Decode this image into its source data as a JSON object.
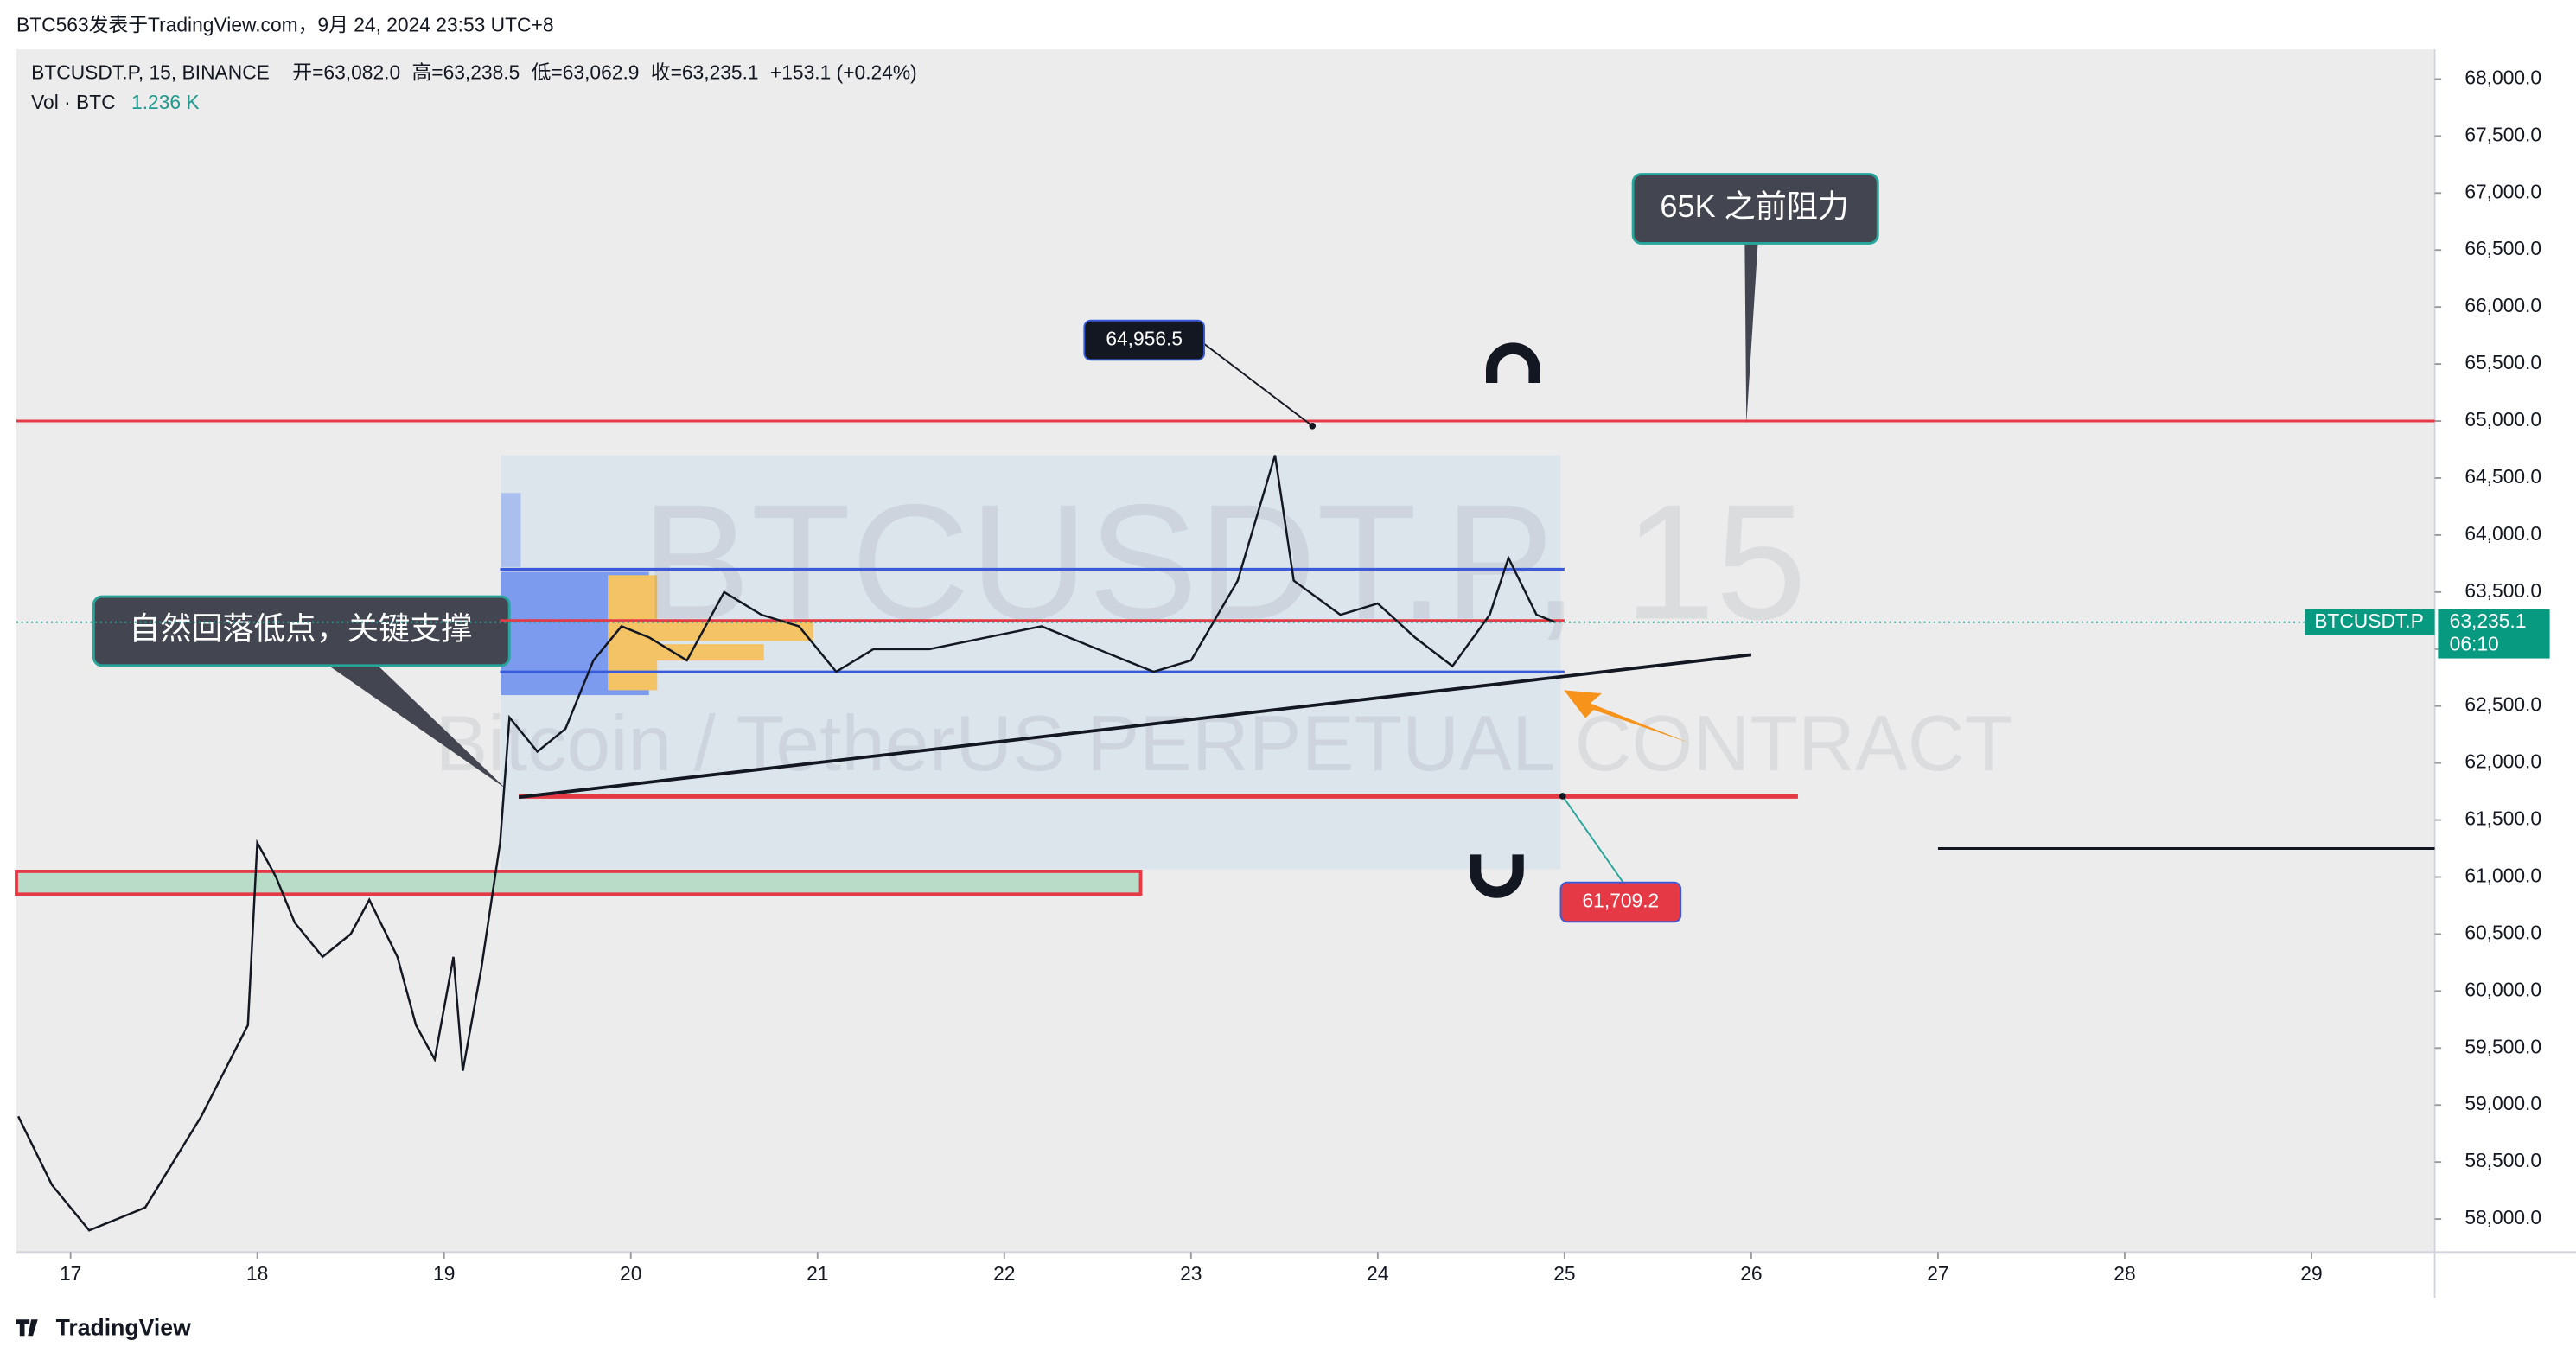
{
  "chart_data": {
    "type": "line",
    "header": "BTC563发表于TradingView.com，9月 24, 2024 23:53 UTC+8",
    "title": "BTCUSDT.P, 15, BINANCE",
    "ohlc": [
      "开=63,082.0",
      "高=63,238.5",
      "低=63,062.9",
      "收=63,235.1",
      "+153.1 (+0.24%)"
    ],
    "volume_label": "Vol · BTC",
    "volume_value": "1.236 K",
    "watermark": "BTCUSDT.P, 15",
    "watermark_sub": "Bitcoin / TetherUS PERPETUAL CONTRACT",
    "footer": "TradingView",
    "xlim": [
      16.71,
      29.66
    ],
    "ylim": [
      57710,
      68260
    ],
    "xticks": [
      17,
      18,
      19,
      20,
      21,
      22,
      23,
      24,
      25,
      26,
      27,
      28,
      29
    ],
    "yticks": [
      {
        "value": 58000,
        "label": "58,000.0"
      },
      {
        "value": 58500,
        "label": "58,500.0"
      },
      {
        "value": 59000,
        "label": "59,000.0"
      },
      {
        "value": 59500,
        "label": "59,500.0"
      },
      {
        "value": 60000,
        "label": "60,000.0"
      },
      {
        "value": 60500,
        "label": "60,500.0"
      },
      {
        "value": 61000,
        "label": "61,000.0"
      },
      {
        "value": 61500,
        "label": "61,500.0"
      },
      {
        "value": 62000,
        "label": "62,000.0"
      },
      {
        "value": 62500,
        "label": "62,500.0"
      },
      {
        "value": 63000,
        "label": "63,000.0"
      },
      {
        "value": 63500,
        "label": "63,500.0"
      },
      {
        "value": 64000,
        "label": "64,000.0"
      },
      {
        "value": 64500,
        "label": "64,500.0"
      },
      {
        "value": 65000,
        "label": "65,000.0"
      },
      {
        "value": 65500,
        "label": "65,500.0"
      },
      {
        "value": 66000,
        "label": "66,000.0"
      },
      {
        "value": 66500,
        "label": "66,500.0"
      },
      {
        "value": 67000,
        "label": "67,000.0"
      },
      {
        "value": 67500,
        "label": "67,500.0"
      },
      {
        "value": 68000,
        "label": "68,000.0"
      }
    ],
    "series": [
      {
        "name": "BTCUSDT.P",
        "color": "#131722",
        "x": [
          16.72,
          16.9,
          17.1,
          17.4,
          17.7,
          17.95,
          18.0,
          18.1,
          18.2,
          18.35,
          18.5,
          18.6,
          18.75,
          18.85,
          18.95,
          19.05,
          19.1,
          19.2,
          19.3,
          19.35,
          19.5,
          19.65,
          19.8,
          19.95,
          20.1,
          20.3,
          20.5,
          20.7,
          20.9,
          21.1,
          21.3,
          21.6,
          21.9,
          22.2,
          22.5,
          22.8,
          23.0,
          23.25,
          23.45,
          23.55,
          23.8,
          24.0,
          24.2,
          24.4,
          24.6,
          24.7,
          24.85,
          24.95
        ],
        "values": [
          58900,
          58300,
          57900,
          58100,
          58900,
          59700,
          61300,
          61000,
          60600,
          60300,
          60500,
          60800,
          60300,
          59700,
          59400,
          60300,
          59300,
          60200,
          61300,
          62400,
          62100,
          62300,
          62900,
          63200,
          63100,
          62900,
          63500,
          63300,
          63200,
          62800,
          63000,
          63000,
          63100,
          63200,
          63000,
          62800,
          62900,
          63600,
          64700,
          63600,
          63300,
          63400,
          63100,
          62850,
          63300,
          63800,
          63300,
          63235.1
        ]
      }
    ],
    "last_price": {
      "value": 63235.1,
      "label": "63,235.1"
    },
    "countdown": "06:10",
    "levels": [
      {
        "value": 65000,
        "x": 16.71,
        "x2": 29.66,
        "color": "#e53945"
      },
      {
        "value": 63700,
        "x": 19.3,
        "x2": 25.0,
        "color": "#3a5bd9"
      },
      {
        "value": 63250,
        "x": 19.3,
        "x2": 25.0,
        "color": "#e53945"
      },
      {
        "value": 62800,
        "x": 19.3,
        "x2": 25.0,
        "color": "#3a5bd9"
      },
      {
        "value": 61709.2,
        "x": 19.4,
        "x2": 26.25,
        "color": "#e53945"
      },
      {
        "value": 61250,
        "x": 27.0,
        "x2": 29.66,
        "color": "#131722"
      }
    ],
    "trendline": {
      "x": [
        19.4,
        26.0
      ],
      "values": [
        61700,
        62950
      ],
      "color": "#131722"
    },
    "zone": {
      "x": [
        16.71,
        22.73
      ],
      "values": [
        60850,
        61050
      ],
      "color": "#b9dcc8"
    },
    "annotations": [
      {
        "text": "64,956.5",
        "value": 64956.5,
        "x": 23.65
      },
      {
        "text": "61,709.2",
        "value": 61709.2,
        "x": 24.99
      }
    ],
    "callouts": [
      "65K 之前阻力",
      "自然回落低点，关键支撑"
    ]
  }
}
